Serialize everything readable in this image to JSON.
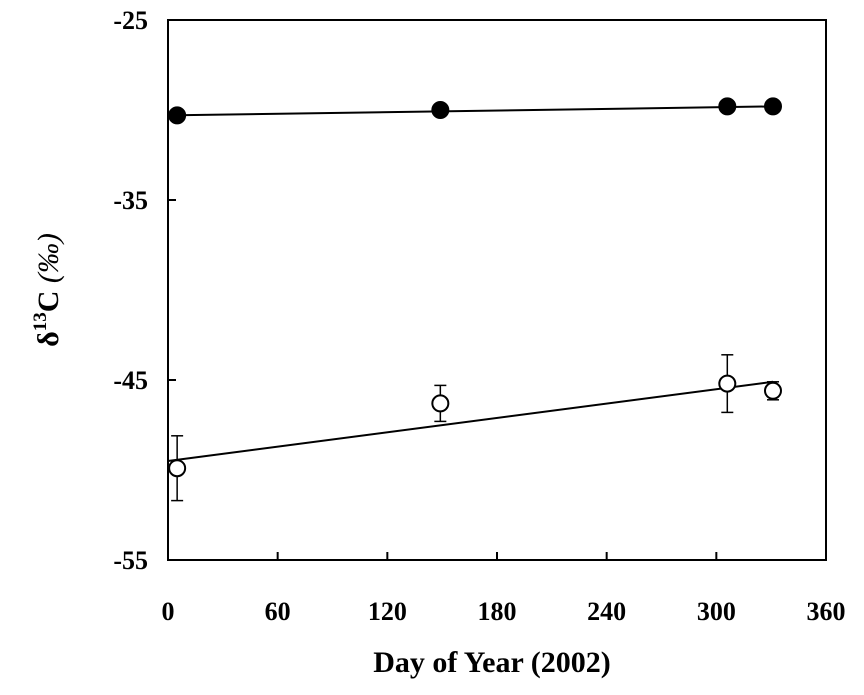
{
  "chart_data": {
    "type": "scatter",
    "xlabel": "Day of Year (2002)",
    "ylabel": {
      "prefix": "δ",
      "superscript": "13",
      "main": "C",
      "unit": "(‰)"
    },
    "xlim": [
      0,
      360
    ],
    "ylim": [
      -55,
      -25
    ],
    "x_ticks": [
      0,
      60,
      120,
      180,
      240,
      300,
      360
    ],
    "x_tick_labels": [
      "0",
      "60",
      "120",
      "180",
      "240",
      "300",
      "360"
    ],
    "y_ticks": [
      -25,
      -35,
      -45,
      -55
    ],
    "y_tick_labels": [
      "-25",
      "-35",
      "-45",
      "-55"
    ],
    "grid": false,
    "legend": "none",
    "series": [
      {
        "marker": "filled-circle",
        "color": "#000000",
        "x": [
          5,
          149,
          306,
          331
        ],
        "y": [
          -30.3,
          -30.0,
          -29.8,
          -29.8
        ],
        "trend_line": {
          "x": [
            0,
            331
          ],
          "y": [
            -30.3,
            -29.8
          ]
        }
      },
      {
        "marker": "open-circle",
        "color": "#000000",
        "x": [
          5,
          149,
          306,
          331
        ],
        "y": [
          -49.9,
          -46.3,
          -45.2,
          -45.6
        ],
        "error": [
          1.8,
          1.0,
          1.6,
          0.5
        ],
        "trend_line": {
          "x": [
            0,
            331
          ],
          "y": [
            -49.5,
            -45.1
          ]
        }
      }
    ]
  }
}
